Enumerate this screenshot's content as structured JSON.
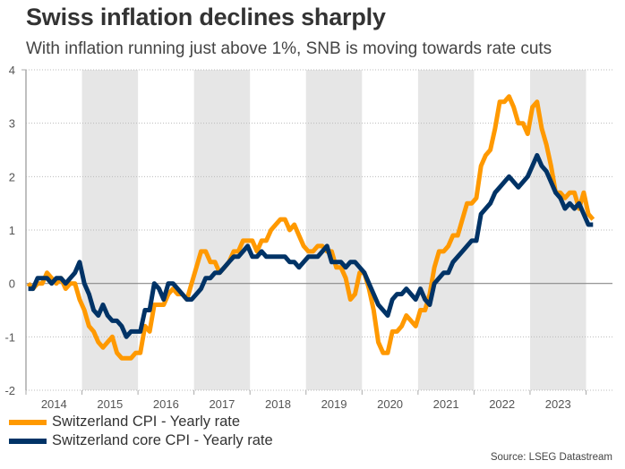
{
  "title": "Swiss inflation declines sharply",
  "subtitle": "With inflation running just above 1%, SNB is moving towards rate cuts",
  "source": "Source: LSEG Datastream",
  "colors": {
    "cpi": "#FF9900",
    "core": "#003366",
    "band": "#E6E6E6",
    "grid": "#BBBBBB",
    "zero": "#888888",
    "axis": "#AAAAAA"
  },
  "legend": [
    {
      "label": "Switzerland CPI - Yearly rate",
      "series": "cpi"
    },
    {
      "label": "Switzerland core CPI - Yearly rate",
      "series": "core"
    }
  ],
  "chart_data": {
    "type": "line",
    "title": "Swiss inflation declines sharply",
    "subtitle": "With inflation running just above 1%, SNB is moving towards rate cuts",
    "xlabel": "",
    "ylabel": "",
    "ylim": [
      -2,
      4
    ],
    "yticks": [
      4,
      3,
      2,
      1,
      0,
      -1,
      -2
    ],
    "xlim": [
      "2014-01",
      "2024-12"
    ],
    "xtick_labels": [
      "2014",
      "2015",
      "2016",
      "2017",
      "2018",
      "2019",
      "2020",
      "2021",
      "2022",
      "2023"
    ],
    "shaded_years": [
      "2015",
      "2017",
      "2019",
      "2021",
      "2023"
    ],
    "grid": true,
    "legend_position": "bottom-left",
    "x_start": "2014-01",
    "x_frequency": "monthly",
    "series": [
      {
        "name": "Switzerland CPI - Yearly rate",
        "key": "cpi",
        "values": [
          0.0,
          -0.1,
          0.0,
          0.0,
          0.2,
          0.1,
          0.0,
          0.1,
          -0.1,
          0.0,
          0.0,
          -0.3,
          -0.5,
          -0.8,
          -0.9,
          -1.1,
          -1.2,
          -1.1,
          -1.0,
          -1.3,
          -1.4,
          -1.4,
          -1.4,
          -1.3,
          -1.3,
          -0.8,
          -0.9,
          -0.4,
          -0.4,
          -0.4,
          -0.2,
          -0.1,
          -0.2,
          -0.2,
          -0.3,
          0.0,
          0.3,
          0.6,
          0.6,
          0.4,
          0.4,
          0.2,
          0.3,
          0.4,
          0.6,
          0.6,
          0.8,
          0.8,
          0.8,
          0.6,
          0.8,
          0.8,
          1.0,
          1.1,
          1.2,
          1.2,
          1.0,
          1.1,
          0.9,
          0.7,
          0.6,
          0.6,
          0.7,
          0.7,
          0.6,
          0.6,
          0.3,
          0.3,
          0.1,
          -0.3,
          -0.2,
          0.2,
          0.2,
          -0.1,
          -0.5,
          -1.1,
          -1.3,
          -1.3,
          -0.9,
          -0.9,
          -0.8,
          -0.6,
          -0.7,
          -0.8,
          -0.5,
          -0.5,
          -0.2,
          0.3,
          0.6,
          0.6,
          0.7,
          0.9,
          0.9,
          1.2,
          1.5,
          1.5,
          1.6,
          2.2,
          2.4,
          2.5,
          2.9,
          3.4,
          3.4,
          3.5,
          3.3,
          3.0,
          3.0,
          2.8,
          3.3,
          3.4,
          2.9,
          2.6,
          2.2,
          1.7,
          1.7,
          1.6,
          1.7,
          1.7,
          1.4,
          1.7,
          1.3,
          1.2
        ]
      },
      {
        "name": "Switzerland core CPI - Yearly rate",
        "key": "core",
        "values": [
          -0.1,
          -0.1,
          0.1,
          0.1,
          0.1,
          0.0,
          0.1,
          0.1,
          0.0,
          0.1,
          0.2,
          0.4,
          0.0,
          -0.2,
          -0.5,
          -0.6,
          -0.4,
          -0.6,
          -0.7,
          -0.7,
          -0.8,
          -1.0,
          -0.9,
          -0.9,
          -0.9,
          -0.5,
          -0.5,
          0.0,
          -0.1,
          -0.3,
          0.0,
          0.0,
          -0.1,
          -0.2,
          -0.3,
          -0.3,
          -0.2,
          -0.1,
          0.1,
          0.1,
          0.2,
          0.2,
          0.3,
          0.4,
          0.5,
          0.5,
          0.6,
          0.7,
          0.5,
          0.5,
          0.6,
          0.5,
          0.5,
          0.5,
          0.5,
          0.5,
          0.4,
          0.4,
          0.3,
          0.4,
          0.5,
          0.5,
          0.5,
          0.6,
          0.7,
          0.4,
          0.4,
          0.4,
          0.3,
          0.4,
          0.4,
          0.3,
          0.2,
          0.0,
          -0.2,
          -0.4,
          -0.5,
          -0.6,
          -0.3,
          -0.2,
          -0.2,
          -0.1,
          -0.2,
          -0.3,
          -0.1,
          -0.3,
          -0.4,
          0.0,
          0.1,
          0.2,
          0.2,
          0.4,
          0.5,
          0.6,
          0.7,
          0.8,
          0.8,
          1.3,
          1.4,
          1.5,
          1.7,
          1.8,
          1.9,
          2.0,
          1.9,
          1.8,
          1.9,
          2.0,
          2.2,
          2.4,
          2.2,
          2.1,
          1.9,
          1.7,
          1.6,
          1.4,
          1.5,
          1.4,
          1.5,
          1.3,
          1.1,
          1.1
        ]
      }
    ]
  }
}
